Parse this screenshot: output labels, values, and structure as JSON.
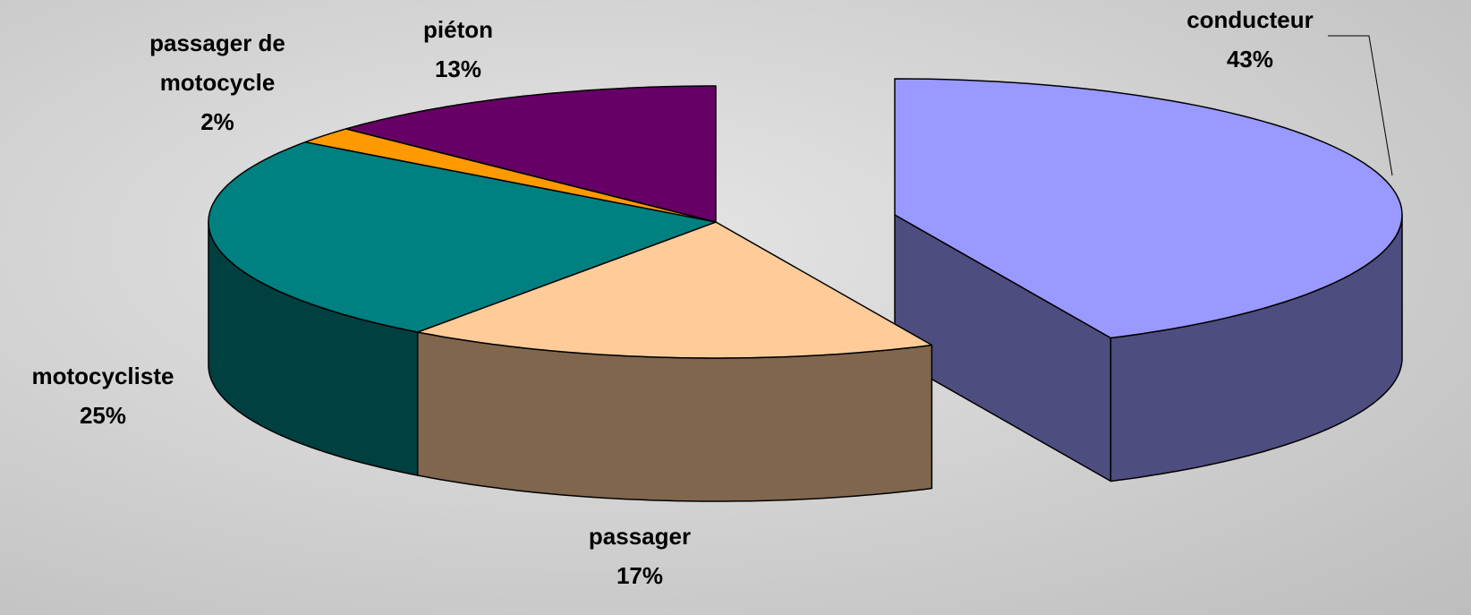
{
  "chart_data": {
    "type": "pie",
    "categories": [
      "conducteur",
      "passager",
      "motocycliste",
      "passager de motocycle",
      "piéton"
    ],
    "values": [
      43,
      17,
      25,
      2,
      13
    ],
    "value_labels": [
      "43%",
      "17%",
      "25%",
      "2%",
      "13%"
    ],
    "colors": [
      "#9999ff",
      "#ffcc99",
      "#008080",
      "#ff9900",
      "#660066"
    ],
    "exploded": [
      true,
      false,
      false,
      false,
      false
    ]
  }
}
